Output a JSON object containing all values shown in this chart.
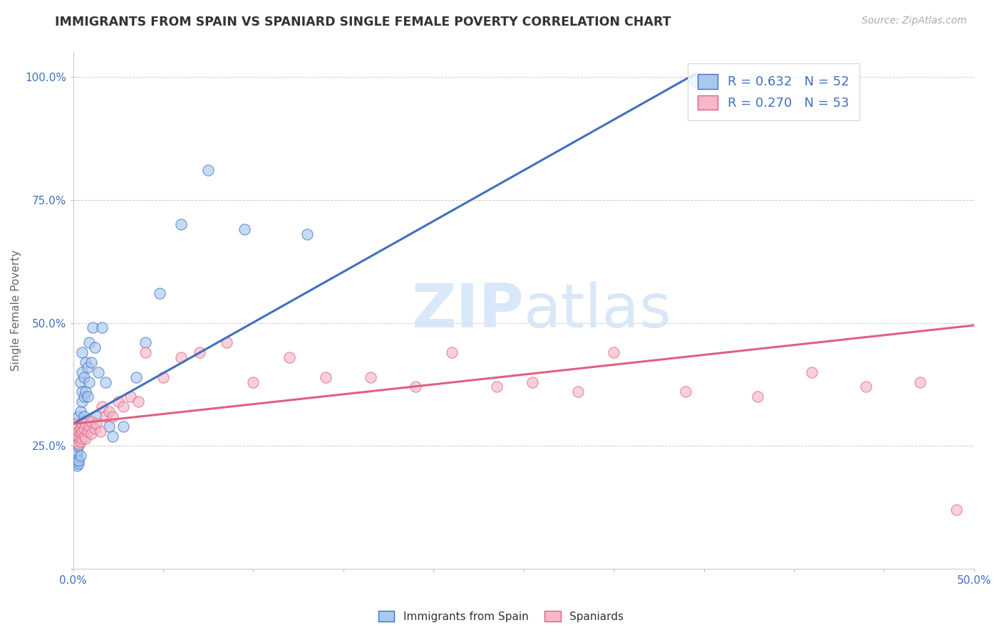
{
  "title": "IMMIGRANTS FROM SPAIN VS SPANIARD SINGLE FEMALE POVERTY CORRELATION CHART",
  "source": "Source: ZipAtlas.com",
  "ylabel": "Single Female Poverty",
  "xlim": [
    0.0,
    0.5
  ],
  "ylim": [
    0.0,
    1.05
  ],
  "xticks": [
    0.0,
    0.05,
    0.1,
    0.15,
    0.2,
    0.25,
    0.3,
    0.35,
    0.4,
    0.45,
    0.5
  ],
  "xtick_labels": [
    "0.0%",
    "",
    "",
    "",
    "",
    "",
    "",
    "",
    "",
    "",
    "50.0%"
  ],
  "ytick_labels": [
    "",
    "25.0%",
    "50.0%",
    "75.0%",
    "100.0%"
  ],
  "yticks": [
    0.0,
    0.25,
    0.5,
    0.75,
    1.0
  ],
  "blue_R": 0.632,
  "blue_N": 52,
  "pink_R": 0.27,
  "pink_N": 53,
  "blue_color": "#A8C8F0",
  "pink_color": "#F5B8C8",
  "blue_line_color": "#4070C0",
  "pink_line_color": "#E06080",
  "watermark_color": "#D8E8F8",
  "bg_color": "#FFFFFF",
  "grid_color": "#CCCCCC",
  "blue_line_x0": 0.0,
  "blue_line_y0": 0.295,
  "blue_line_x1": 0.345,
  "blue_line_y1": 1.005,
  "pink_line_x0": 0.0,
  "pink_line_y0": 0.295,
  "pink_line_x1": 0.5,
  "pink_line_y1": 0.495,
  "blue_pts_x": [
    0.001,
    0.001,
    0.001,
    0.001,
    0.001,
    0.002,
    0.002,
    0.002,
    0.002,
    0.002,
    0.002,
    0.003,
    0.003,
    0.003,
    0.003,
    0.003,
    0.004,
    0.004,
    0.004,
    0.004,
    0.005,
    0.005,
    0.005,
    0.005,
    0.006,
    0.006,
    0.006,
    0.007,
    0.007,
    0.008,
    0.008,
    0.009,
    0.009,
    0.01,
    0.01,
    0.011,
    0.012,
    0.013,
    0.014,
    0.016,
    0.018,
    0.02,
    0.022,
    0.028,
    0.035,
    0.04,
    0.048,
    0.06,
    0.075,
    0.095,
    0.13,
    0.345
  ],
  "blue_pts_y": [
    0.215,
    0.225,
    0.23,
    0.235,
    0.22,
    0.21,
    0.22,
    0.225,
    0.23,
    0.235,
    0.24,
    0.215,
    0.22,
    0.25,
    0.27,
    0.31,
    0.23,
    0.28,
    0.32,
    0.38,
    0.34,
    0.36,
    0.4,
    0.44,
    0.31,
    0.35,
    0.39,
    0.36,
    0.42,
    0.35,
    0.41,
    0.38,
    0.46,
    0.29,
    0.42,
    0.49,
    0.45,
    0.31,
    0.4,
    0.49,
    0.38,
    0.29,
    0.27,
    0.29,
    0.39,
    0.46,
    0.56,
    0.7,
    0.81,
    0.69,
    0.68,
    0.99
  ],
  "pink_pts_x": [
    0.001,
    0.002,
    0.002,
    0.002,
    0.003,
    0.003,
    0.003,
    0.004,
    0.004,
    0.004,
    0.005,
    0.005,
    0.005,
    0.006,
    0.006,
    0.007,
    0.007,
    0.008,
    0.009,
    0.01,
    0.01,
    0.012,
    0.013,
    0.015,
    0.016,
    0.018,
    0.02,
    0.022,
    0.025,
    0.028,
    0.032,
    0.036,
    0.04,
    0.05,
    0.06,
    0.07,
    0.085,
    0.1,
    0.12,
    0.14,
    0.165,
    0.19,
    0.21,
    0.235,
    0.255,
    0.28,
    0.3,
    0.34,
    0.38,
    0.41,
    0.44,
    0.47,
    0.49
  ],
  "pink_pts_y": [
    0.26,
    0.27,
    0.29,
    0.295,
    0.255,
    0.27,
    0.28,
    0.26,
    0.275,
    0.285,
    0.265,
    0.28,
    0.295,
    0.27,
    0.285,
    0.265,
    0.295,
    0.28,
    0.29,
    0.275,
    0.3,
    0.285,
    0.295,
    0.28,
    0.33,
    0.31,
    0.32,
    0.31,
    0.34,
    0.33,
    0.35,
    0.34,
    0.44,
    0.39,
    0.43,
    0.44,
    0.46,
    0.38,
    0.43,
    0.39,
    0.39,
    0.37,
    0.44,
    0.37,
    0.38,
    0.36,
    0.44,
    0.36,
    0.35,
    0.4,
    0.37,
    0.38,
    0.12
  ]
}
